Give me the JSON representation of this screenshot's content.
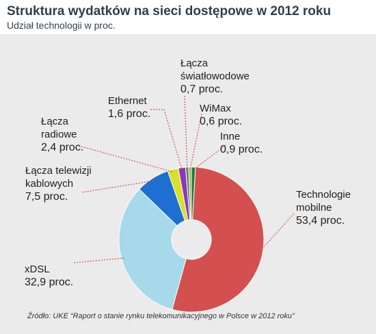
{
  "header": {
    "title": "Struktura wydatków na sieci dostępowe w 2012 roku",
    "subtitle": "Udział technologii w proc."
  },
  "source": "Źródło: UKE “Raport o stanie rynku telekomunikacyjnego w Polsce w 2012 roku”",
  "chart_data": {
    "type": "pie",
    "title": "Struktura wydatków na sieci dostępowe w 2012 roku",
    "subtitle": "Udział technologii w proc.",
    "slices": [
      {
        "name": "Technologie mobilne",
        "value": 53.4,
        "label": "53,4 proc.",
        "color": "#d4504f"
      },
      {
        "name": "xDSL",
        "value": 32.9,
        "label": "32,9 proc.",
        "color": "#a6d9ea"
      },
      {
        "name": "Łącza telewizji kablowych",
        "value": 7.5,
        "label": "7,5 proc.",
        "color": "#1e6fd2"
      },
      {
        "name": "Łącza radiowe",
        "value": 2.4,
        "label": "2,4 proc.",
        "color": "#d8e02c"
      },
      {
        "name": "Ethernet",
        "value": 1.6,
        "label": "1,6 proc.",
        "color": "#8c37b4"
      },
      {
        "name": "Łącza światłowodowe",
        "value": 0.7,
        "label": "0,7 proc.",
        "color": "#6f7a85"
      },
      {
        "name": "WiMax",
        "value": 0.6,
        "label": "0,6 proc.",
        "color": "#a0bd2b"
      },
      {
        "name": "Inne",
        "value": 0.9,
        "label": "0,9 proc.",
        "color": "#1f7a44"
      }
    ],
    "label_lines": {
      "Technologie mobilne": [
        "Technologie",
        "mobilne"
      ],
      "xDSL": [
        "xDSL"
      ],
      "Łącza telewizji kablowych": [
        "Łącza telewizji",
        "kablowych"
      ],
      "Łącza radiowe": [
        "Łącza",
        "radiowe"
      ],
      "Ethernet": [
        "Ethernet"
      ],
      "Łącza światłowodowe": [
        "Łącza",
        "światłowodowe"
      ],
      "WiMax": [
        "WiMax"
      ],
      "Inne": [
        "Inne"
      ]
    },
    "leader_color": "#d4504f"
  }
}
